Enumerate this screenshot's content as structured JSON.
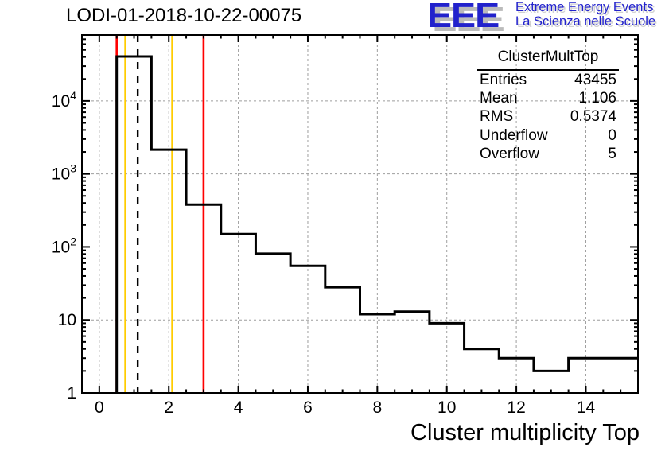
{
  "page": {
    "title": "LODI-01-2018-10-22-00075"
  },
  "logo": {
    "acronym": "EEE",
    "line1": "Extreme Energy Events",
    "line2": "La Scienza nelle Scuole",
    "blue": "#2222cc",
    "shadow_gray": "#bbbbbb"
  },
  "stats": {
    "title": "ClusterMultTop",
    "rows": [
      {
        "label": "Entries",
        "value": "43455"
      },
      {
        "label": "Mean",
        "value": "1.106"
      },
      {
        "label": "RMS",
        "value": "0.5374"
      },
      {
        "label": "Underflow",
        "value": "0"
      },
      {
        "label": "Overflow",
        "value": "5"
      }
    ]
  },
  "chart_data": {
    "type": "bar",
    "subtype": "step-histogram",
    "title": "LODI-01-2018-10-22-00075",
    "xlabel": "Cluster multiplicity Top",
    "ylabel": "",
    "yscale": "log",
    "grid": "dashed-gray",
    "xlim": [
      -0.5,
      15.5
    ],
    "ylim": [
      1,
      80000
    ],
    "bin_width": 1,
    "bin_centers": [
      0,
      1,
      2,
      3,
      4,
      5,
      6,
      7,
      8,
      9,
      10,
      11,
      12,
      13,
      14,
      15
    ],
    "values": [
      0,
      40600,
      2150,
      380,
      150,
      81,
      55,
      28,
      12,
      13,
      9,
      4,
      3,
      2,
      3,
      3
    ],
    "x_ticks": [
      0,
      2,
      4,
      6,
      8,
      10,
      12,
      14
    ],
    "x_minor_tick_step": 0.5,
    "y_ticks": [
      {
        "exp": 0,
        "base": "1",
        "sup": ""
      },
      {
        "exp": 1,
        "base": "10",
        "sup": ""
      },
      {
        "exp": 2,
        "base": "10",
        "sup": "2"
      },
      {
        "exp": 3,
        "base": "10",
        "sup": "3"
      },
      {
        "exp": 4,
        "base": "10",
        "sup": "4"
      }
    ],
    "marker_lines": [
      {
        "x": 0.5,
        "color": "#ff0000",
        "style": "solid"
      },
      {
        "x": 0.75,
        "color": "#ffcc00",
        "style": "solid"
      },
      {
        "x": 1.106,
        "color": "#000000",
        "style": "dashed"
      },
      {
        "x": 2.1,
        "color": "#ffcc00",
        "style": "solid"
      },
      {
        "x": 3.0,
        "color": "#ff0000",
        "style": "solid"
      }
    ],
    "colors": {
      "histogram": "#000000",
      "grid": "#9e9e9e",
      "frame": "#000000"
    }
  }
}
